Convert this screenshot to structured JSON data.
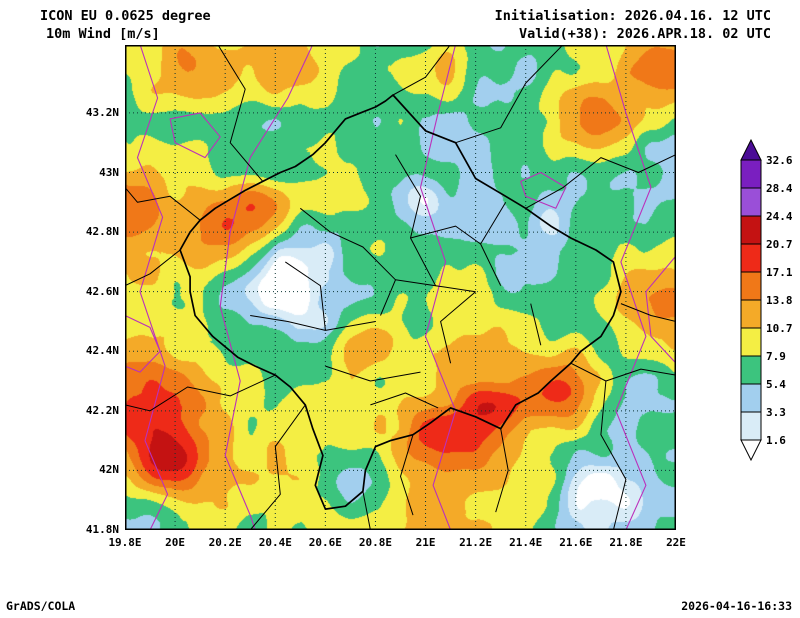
{
  "header": {
    "line1": "ICON EU 0.0625 degree",
    "line2": "10m Wind [m/s]",
    "init": "Initialisation: 2026.04.16. 12 UTC",
    "valid": "Valid(+38): 2026.APR.18. 02 UTC"
  },
  "footer": {
    "left": "GrADS/COLA",
    "right": "2026-04-16-16:33"
  },
  "axes": {
    "lat_ticks": [
      "43.2N",
      "43N",
      "42.8N",
      "42.6N",
      "42.4N",
      "42.2N",
      "42N",
      "41.8N"
    ],
    "lon_ticks": [
      "19.8E",
      "20E",
      "20.2E",
      "20.4E",
      "20.6E",
      "20.8E",
      "21E",
      "21.2E",
      "21.4E",
      "21.6E",
      "21.8E",
      "22E"
    ]
  },
  "colorbar": {
    "labels": [
      "32.6",
      "28.4",
      "24.4",
      "20.7",
      "17.1",
      "13.8",
      "10.7",
      "7.9",
      "5.4",
      "3.3",
      "1.6"
    ],
    "colors": [
      "#4b0d96",
      "#7a1fc0",
      "#9a4fd8",
      "#c41212",
      "#ee2a18",
      "#f07818",
      "#f4aa28",
      "#f4ee44",
      "#3cc47e",
      "#a2cfee",
      "#d9ecf7",
      "#ffffff"
    ]
  },
  "chart_data": {
    "type": "heatmap",
    "title": "ICON EU 0.0625 degree — 10m Wind [m/s]",
    "model": "ICON EU 0.0625 degree",
    "variable": "10m Wind",
    "units": "m/s",
    "init_time": "2026.04.16. 12 UTC",
    "valid_time": "2026.APR.18. 02 UTC",
    "lead_hours": 38,
    "lon_range": [
      19.8,
      22.0
    ],
    "lat_range": [
      41.8,
      43.43
    ],
    "lon_tick_values": [
      19.8,
      20.0,
      20.2,
      20.4,
      20.6,
      20.8,
      21.0,
      21.2,
      21.4,
      21.6,
      21.8,
      22.0
    ],
    "lat_tick_values": [
      43.2,
      43.0,
      42.8,
      42.6,
      42.4,
      42.2,
      42.0,
      41.8
    ],
    "levels_mps": [
      1.6,
      3.3,
      5.4,
      7.9,
      10.7,
      13.8,
      17.1,
      20.7,
      24.4,
      28.4,
      32.6
    ],
    "legend_position": "right",
    "grid": "dotted 0.2-degree graticule",
    "overlays": [
      "black administrative borders (Kosovo region)",
      "magenta isoline contours"
    ]
  }
}
